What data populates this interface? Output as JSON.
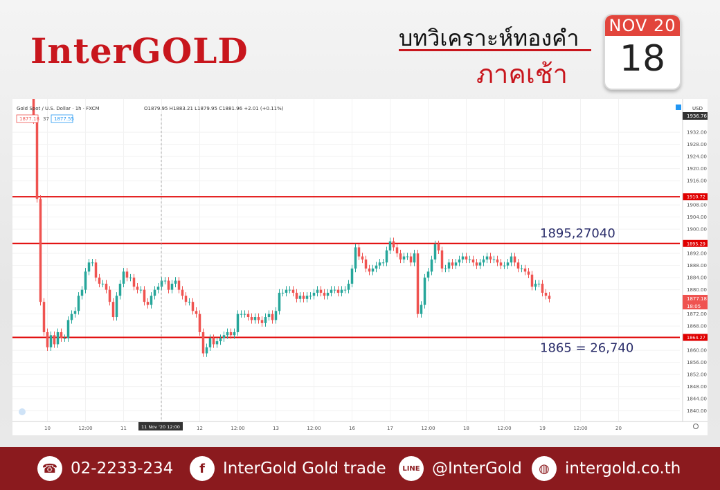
{
  "header": {
    "brand": "InterGOLD",
    "title_line1": "บทวิเคราะห์ทองคำ",
    "title_line2": "ภาคเช้า",
    "calendar_month": "NOV 20",
    "calendar_day": "18"
  },
  "chart_info": {
    "symbol": "Gold Spot / U.S. Dollar · 1h · FXCM",
    "ohlc": "O1879.95 H1883.21 L1879.95 C1881.96 +2.01 (+0.11%)",
    "bid": "1877.18",
    "spread": "37",
    "ask": "1877.55",
    "currency": "USD",
    "price_tag_top": "1936.76",
    "price_tag_current": "1877.18",
    "countdown": "18:05",
    "cursor_date": "11 Nov '20  12:00"
  },
  "chart_data": {
    "type": "candlestick",
    "x_ticks": [
      "10",
      "12:00",
      "11",
      "12:00",
      "12",
      "12:00",
      "13",
      "12:00",
      "16",
      "17",
      "12:00",
      "18",
      "12:00",
      "19",
      "12:00",
      "20"
    ],
    "y_ticks": [
      "1932.00",
      "1928.00",
      "1924.00",
      "1920.00",
      "1916.00",
      "1908.00",
      "1904.00",
      "1900.00",
      "1892.00",
      "1888.00",
      "1884.00",
      "1880.00",
      "1872.00",
      "1868.00",
      "1860.00",
      "1856.00",
      "1852.00",
      "1848.00",
      "1844.00",
      "1840.00"
    ],
    "ylim": [
      1836.5,
      1943
    ],
    "levels": [
      {
        "price": 1910.72,
        "label": "1910.72"
      },
      {
        "price": 1895.29,
        "label": "1895.29"
      },
      {
        "price": 1864.27,
        "label": "1864.27"
      }
    ],
    "annotations": [
      {
        "text": "1895,27040",
        "price": 1895.29
      },
      {
        "text": "1865 = 26,740",
        "price": 1864.27
      }
    ],
    "closes": [
      1936,
      1910,
      1876,
      1866,
      1861,
      1865,
      1862,
      1866,
      1864,
      1864,
      1870,
      1872,
      1873,
      1878,
      1880,
      1886,
      1889,
      1889,
      1884,
      1882,
      1882,
      1880,
      1876,
      1871,
      1878,
      1882,
      1886,
      1884,
      1884,
      1881,
      1880,
      1880,
      1876,
      1875,
      1878,
      1880,
      1881,
      1883,
      1883,
      1880,
      1882,
      1883,
      1880,
      1878,
      1876,
      1876,
      1873,
      1872,
      1866,
      1859,
      1861,
      1864,
      1862,
      1863,
      1864,
      1865,
      1866,
      1865,
      1866,
      1872,
      1872,
      1872,
      1871,
      1870,
      1871,
      1870,
      1869,
      1871,
      1872,
      1870,
      1873,
      1879,
      1879,
      1880,
      1880,
      1879,
      1877,
      1878,
      1877,
      1878,
      1878,
      1879,
      1880,
      1879,
      1878,
      1879,
      1880,
      1880,
      1879,
      1880,
      1880,
      1882,
      1887,
      1894,
      1891,
      1890,
      1887,
      1886,
      1887,
      1888,
      1889,
      1889,
      1893,
      1896,
      1894,
      1892,
      1890,
      1891,
      1891,
      1889,
      1892,
      1872,
      1875,
      1884,
      1886,
      1890,
      1895,
      1893,
      1887,
      1887,
      1889,
      1888,
      1889,
      1890,
      1891,
      1890,
      1890,
      1889,
      1888,
      1889,
      1890,
      1891,
      1890,
      1890,
      1889,
      1888,
      1888,
      1889,
      1891,
      1889,
      1887,
      1887,
      1886,
      1885,
      1881,
      1882,
      1882,
      1879,
      1878,
      1877
    ]
  },
  "footer": {
    "phone": "02-2233-234",
    "facebook": "InterGold Gold trade",
    "line": "@InterGold",
    "website": "intergold.co.th",
    "phone_icon": "phone-icon",
    "facebook_icon": "facebook-icon",
    "line_icon": "line-icon",
    "web_icon": "globe-icon"
  },
  "colors": {
    "brand_red": "#c8161d",
    "footer_bg": "#8b1a1e",
    "candle_up": "#26a69a",
    "candle_down": "#ef5350",
    "level_line": "#e00000"
  }
}
